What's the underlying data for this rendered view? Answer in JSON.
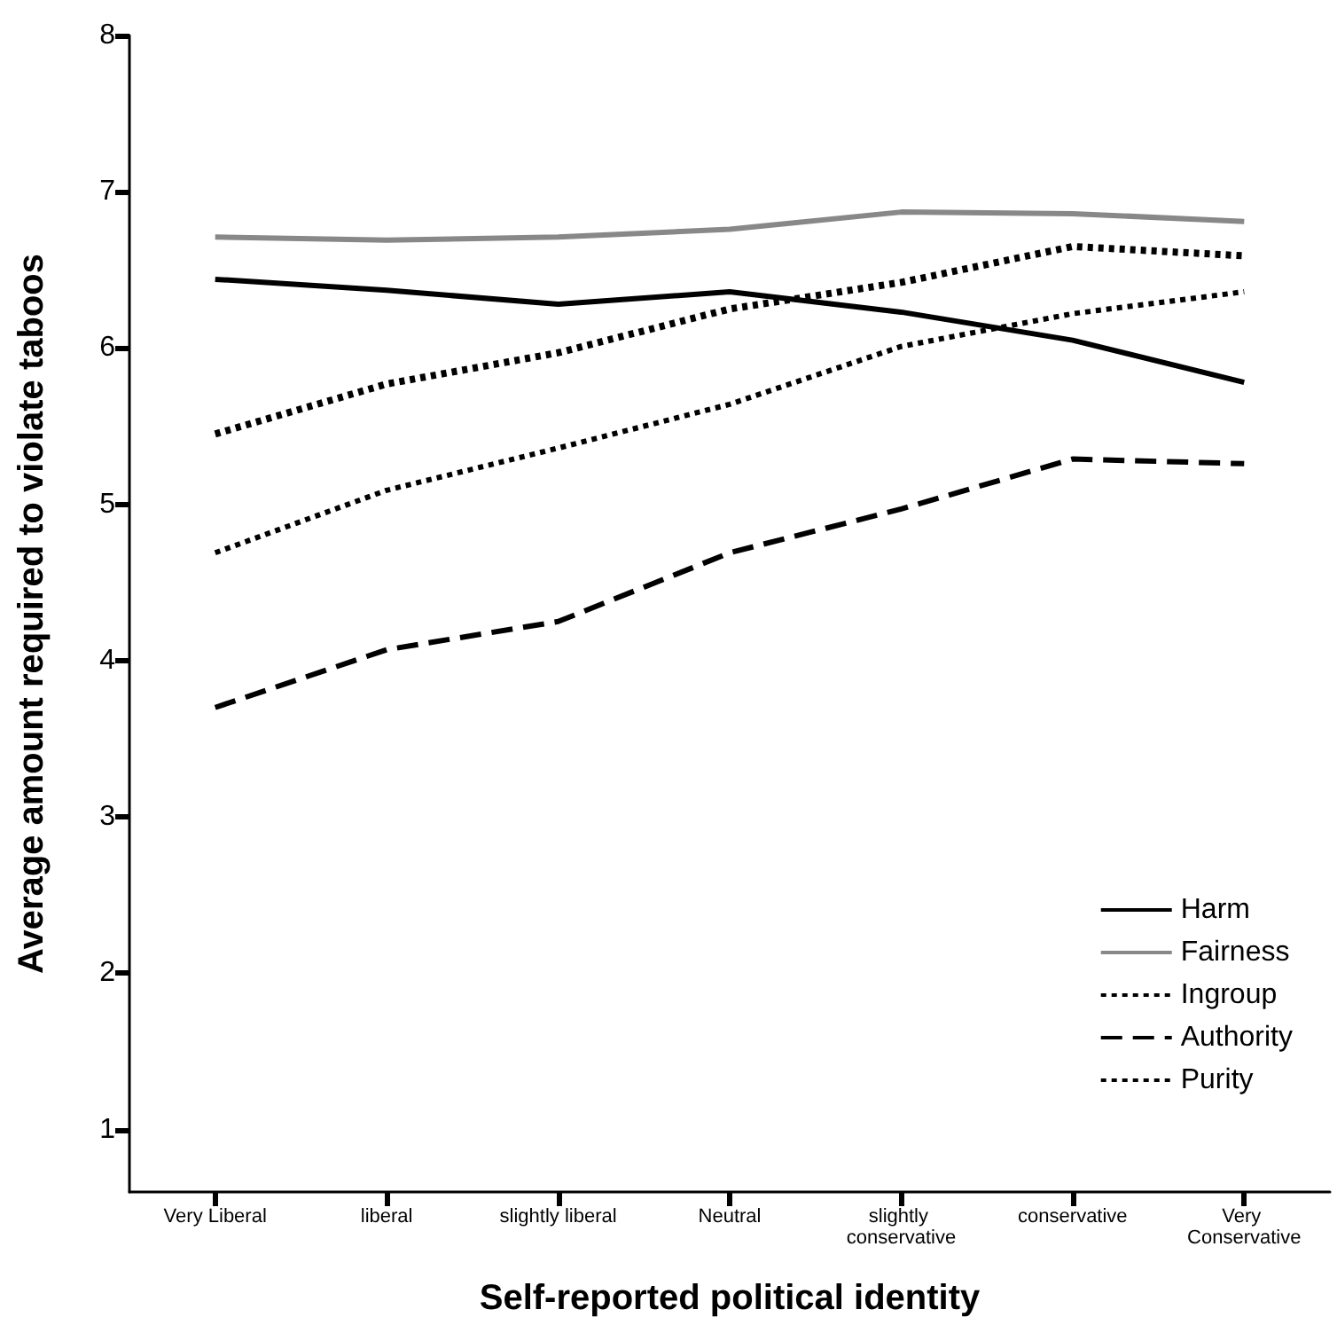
{
  "chart_data": {
    "type": "line",
    "xlabel": "Self-reported political identity",
    "ylabel": "Average amount required to violate taboos",
    "categories": [
      "Very Liberal",
      "liberal",
      "slightly liberal",
      "Neutral",
      "slightly conservative",
      "conservative",
      "Very Conservative"
    ],
    "series": [
      {
        "name": "Harm",
        "color": "#000000",
        "line_style": "solid",
        "values": [
          6.44,
          6.37,
          6.28,
          6.36,
          6.23,
          6.05,
          5.78
        ]
      },
      {
        "name": "Fairness",
        "color": "#888888",
        "line_style": "solid",
        "values": [
          6.71,
          6.69,
          6.71,
          6.76,
          6.87,
          6.86,
          6.81
        ]
      },
      {
        "name": "Ingroup",
        "color": "#000000",
        "line_style": "dotted",
        "values": [
          4.69,
          5.09,
          5.36,
          5.64,
          6.01,
          6.22,
          6.36
        ]
      },
      {
        "name": "Authority",
        "color": "#000000",
        "line_style": "dashed",
        "values": [
          3.7,
          4.07,
          4.25,
          4.69,
          4.97,
          5.29,
          5.26
        ]
      },
      {
        "name": "Purity",
        "color": "#000000",
        "line_style": "dotted",
        "values": [
          5.45,
          5.77,
          5.97,
          6.25,
          6.42,
          6.65,
          6.59
        ]
      }
    ],
    "ylim": [
      0.6,
      8
    ],
    "yticks": [
      1,
      2,
      3,
      4,
      5,
      6,
      7,
      8
    ],
    "grid": false,
    "legend": "bottom right",
    "marker": "none"
  }
}
